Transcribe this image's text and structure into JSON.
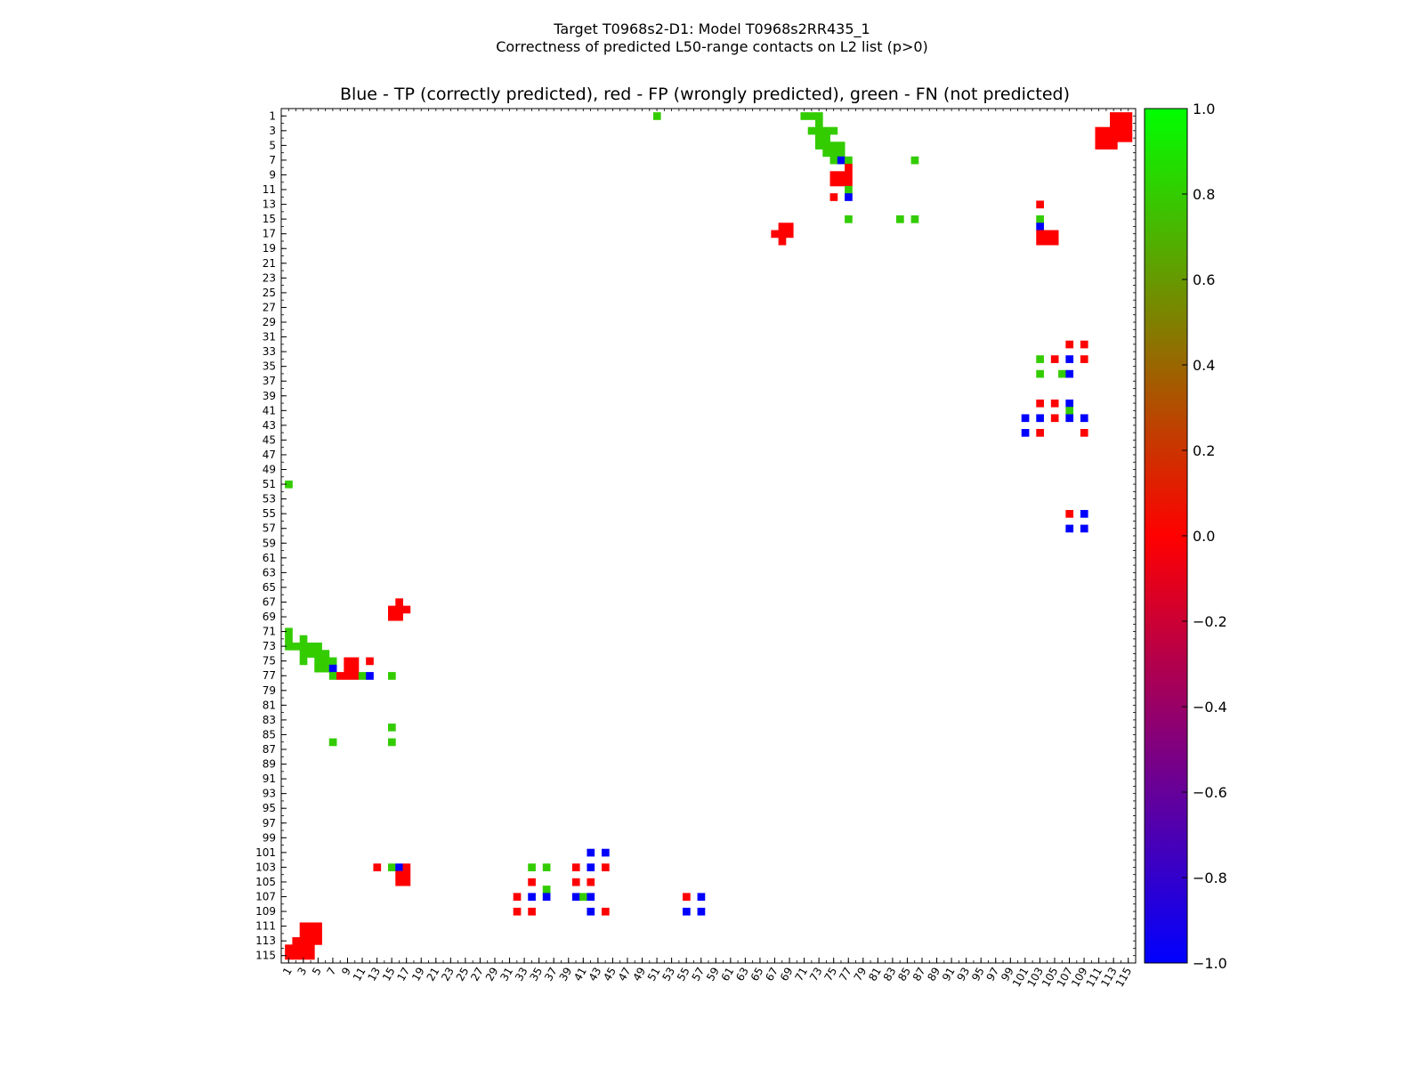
{
  "chart_data": {
    "type": "heatmap",
    "title": "Target T0968s2-D1: Model T0968s2RR435_1",
    "subtitle": "Correctness of predicted L50-range contacts on L2 list (p>0)",
    "panel_title": "Blue - TP (correctly predicted), red - FP (wrongly predicted), green - FN (not predicted)",
    "n_residues": 115,
    "xlim": [
      1,
      115
    ],
    "ylim": [
      1,
      115
    ],
    "x_ticks": [
      1,
      3,
      5,
      7,
      9,
      11,
      13,
      15,
      17,
      19,
      21,
      23,
      25,
      27,
      29,
      31,
      33,
      35,
      37,
      39,
      41,
      43,
      45,
      47,
      49,
      51,
      53,
      55,
      57,
      59,
      61,
      63,
      65,
      67,
      69,
      71,
      73,
      75,
      77,
      79,
      81,
      83,
      85,
      87,
      89,
      91,
      93,
      95,
      97,
      99,
      101,
      103,
      105,
      107,
      109,
      111,
      113,
      115
    ],
    "y_ticks": [
      1,
      3,
      5,
      7,
      9,
      11,
      13,
      15,
      17,
      19,
      21,
      23,
      25,
      27,
      29,
      31,
      33,
      35,
      37,
      39,
      41,
      43,
      45,
      47,
      49,
      51,
      53,
      55,
      57,
      59,
      61,
      63,
      65,
      67,
      69,
      71,
      73,
      75,
      77,
      79,
      81,
      83,
      85,
      87,
      89,
      91,
      93,
      95,
      97,
      99,
      101,
      103,
      105,
      107,
      109,
      111,
      113,
      115
    ],
    "legend": {
      "tp": "blue",
      "fp": "red",
      "fn": "green"
    },
    "colors": {
      "tp": "#0000ff",
      "fp": "#ff0000",
      "fn": "#33cc00",
      "fn_light": "#44dd00"
    },
    "colorbar": {
      "range": [
        -1.0,
        1.0
      ],
      "ticks": [
        "1.0",
        "0.8",
        "0.6",
        "0.4",
        "0.2",
        "0.0",
        "−0.2",
        "−0.4",
        "−0.6",
        "−0.8",
        "−1.0"
      ],
      "tick_values": [
        1.0,
        0.8,
        0.6,
        0.4,
        0.2,
        0.0,
        -0.2,
        -0.4,
        -0.6,
        -0.8,
        -1.0
      ],
      "stops": [
        {
          "value": -1.0,
          "color": "#0000ff"
        },
        {
          "value": -0.5,
          "color": "#7f0080"
        },
        {
          "value": 0.0,
          "color": "#ff0000"
        },
        {
          "value": 0.5,
          "color": "#808000"
        },
        {
          "value": 1.0,
          "color": "#00ff00"
        }
      ]
    },
    "cells": [
      {
        "x": 51,
        "y": 1,
        "c": "fn"
      },
      {
        "x": 71,
        "y": 1,
        "c": "fn"
      },
      {
        "x": 72,
        "y": 1,
        "c": "fn"
      },
      {
        "x": 73,
        "y": 1,
        "c": "fn"
      },
      {
        "x": 73,
        "y": 2,
        "c": "fn"
      },
      {
        "x": 72,
        "y": 3,
        "c": "fn"
      },
      {
        "x": 73,
        "y": 3,
        "c": "fn"
      },
      {
        "x": 74,
        "y": 3,
        "c": "fn"
      },
      {
        "x": 75,
        "y": 3,
        "c": "fn"
      },
      {
        "x": 73,
        "y": 4,
        "c": "fn"
      },
      {
        "x": 74,
        "y": 4,
        "c": "fn"
      },
      {
        "x": 73,
        "y": 5,
        "c": "fn"
      },
      {
        "x": 74,
        "y": 5,
        "c": "fn"
      },
      {
        "x": 75,
        "y": 5,
        "c": "fn"
      },
      {
        "x": 76,
        "y": 5,
        "c": "fn"
      },
      {
        "x": 74,
        "y": 6,
        "c": "fn"
      },
      {
        "x": 75,
        "y": 6,
        "c": "fn"
      },
      {
        "x": 76,
        "y": 6,
        "c": "fn"
      },
      {
        "x": 75,
        "y": 7,
        "c": "fn"
      },
      {
        "x": 76,
        "y": 7,
        "c": "tp"
      },
      {
        "x": 77,
        "y": 7,
        "c": "fn"
      },
      {
        "x": 86,
        "y": 7,
        "c": "fn"
      },
      {
        "x": 77,
        "y": 8,
        "c": "fp"
      },
      {
        "x": 75,
        "y": 9,
        "c": "fp"
      },
      {
        "x": 76,
        "y": 9,
        "c": "fp"
      },
      {
        "x": 77,
        "y": 9,
        "c": "fp"
      },
      {
        "x": 75,
        "y": 10,
        "c": "fp"
      },
      {
        "x": 76,
        "y": 10,
        "c": "fp"
      },
      {
        "x": 77,
        "y": 10,
        "c": "fp"
      },
      {
        "x": 77,
        "y": 11,
        "c": "fn"
      },
      {
        "x": 75,
        "y": 12,
        "c": "fp"
      },
      {
        "x": 77,
        "y": 12,
        "c": "tp"
      },
      {
        "x": 103,
        "y": 13,
        "c": "fp"
      },
      {
        "x": 77,
        "y": 15,
        "c": "fn"
      },
      {
        "x": 84,
        "y": 15,
        "c": "fn"
      },
      {
        "x": 86,
        "y": 15,
        "c": "fn"
      },
      {
        "x": 103,
        "y": 15,
        "c": "fn"
      },
      {
        "x": 68,
        "y": 16,
        "c": "fp"
      },
      {
        "x": 69,
        "y": 16,
        "c": "fp"
      },
      {
        "x": 103,
        "y": 16,
        "c": "tp"
      },
      {
        "x": 67,
        "y": 17,
        "c": "fp"
      },
      {
        "x": 68,
        "y": 17,
        "c": "fp"
      },
      {
        "x": 69,
        "y": 17,
        "c": "fp"
      },
      {
        "x": 103,
        "y": 17,
        "c": "fp"
      },
      {
        "x": 104,
        "y": 17,
        "c": "fp"
      },
      {
        "x": 105,
        "y": 17,
        "c": "fp"
      },
      {
        "x": 68,
        "y": 18,
        "c": "fp"
      },
      {
        "x": 103,
        "y": 18,
        "c": "fp"
      },
      {
        "x": 104,
        "y": 18,
        "c": "fp"
      },
      {
        "x": 105,
        "y": 18,
        "c": "fp"
      },
      {
        "x": 107,
        "y": 32,
        "c": "fp"
      },
      {
        "x": 109,
        "y": 32,
        "c": "fp"
      },
      {
        "x": 103,
        "y": 34,
        "c": "fn"
      },
      {
        "x": 105,
        "y": 34,
        "c": "fp"
      },
      {
        "x": 107,
        "y": 34,
        "c": "tp"
      },
      {
        "x": 109,
        "y": 34,
        "c": "fp"
      },
      {
        "x": 103,
        "y": 36,
        "c": "fn"
      },
      {
        "x": 106,
        "y": 36,
        "c": "fn"
      },
      {
        "x": 107,
        "y": 36,
        "c": "tp"
      },
      {
        "x": 103,
        "y": 40,
        "c": "fp"
      },
      {
        "x": 105,
        "y": 40,
        "c": "fp"
      },
      {
        "x": 107,
        "y": 40,
        "c": "tp"
      },
      {
        "x": 107,
        "y": 41,
        "c": "fn"
      },
      {
        "x": 101,
        "y": 42,
        "c": "tp"
      },
      {
        "x": 103,
        "y": 42,
        "c": "tp"
      },
      {
        "x": 105,
        "y": 42,
        "c": "fp"
      },
      {
        "x": 107,
        "y": 42,
        "c": "tp"
      },
      {
        "x": 109,
        "y": 42,
        "c": "tp"
      },
      {
        "x": 101,
        "y": 44,
        "c": "tp"
      },
      {
        "x": 103,
        "y": 44,
        "c": "fp"
      },
      {
        "x": 109,
        "y": 44,
        "c": "fp"
      },
      {
        "x": 107,
        "y": 55,
        "c": "fp"
      },
      {
        "x": 109,
        "y": 55,
        "c": "tp"
      },
      {
        "x": 107,
        "y": 57,
        "c": "tp"
      },
      {
        "x": 109,
        "y": 57,
        "c": "tp"
      },
      {
        "x": 113,
        "y": 1,
        "c": "fp"
      },
      {
        "x": 114,
        "y": 1,
        "c": "fp"
      },
      {
        "x": 115,
        "y": 1,
        "c": "fp"
      },
      {
        "x": 113,
        "y": 2,
        "c": "fp"
      },
      {
        "x": 114,
        "y": 2,
        "c": "fp"
      },
      {
        "x": 115,
        "y": 2,
        "c": "fp"
      },
      {
        "x": 111,
        "y": 3,
        "c": "fp"
      },
      {
        "x": 112,
        "y": 3,
        "c": "fp"
      },
      {
        "x": 113,
        "y": 3,
        "c": "fp"
      },
      {
        "x": 114,
        "y": 3,
        "c": "fp"
      },
      {
        "x": 115,
        "y": 3,
        "c": "fp"
      },
      {
        "x": 111,
        "y": 4,
        "c": "fp"
      },
      {
        "x": 112,
        "y": 4,
        "c": "fp"
      },
      {
        "x": 113,
        "y": 4,
        "c": "fp"
      },
      {
        "x": 114,
        "y": 4,
        "c": "fp"
      },
      {
        "x": 115,
        "y": 4,
        "c": "fp"
      },
      {
        "x": 111,
        "y": 5,
        "c": "fp"
      },
      {
        "x": 112,
        "y": 5,
        "c": "fp"
      },
      {
        "x": 113,
        "y": 5,
        "c": "fp"
      },
      {
        "x": 1,
        "y": 51,
        "c": "fn"
      },
      {
        "x": 16,
        "y": 67,
        "c": "fp"
      },
      {
        "x": 15,
        "y": 68,
        "c": "fp"
      },
      {
        "x": 16,
        "y": 68,
        "c": "fp"
      },
      {
        "x": 17,
        "y": 68,
        "c": "fp"
      },
      {
        "x": 15,
        "y": 69,
        "c": "fp"
      },
      {
        "x": 16,
        "y": 69,
        "c": "fp"
      },
      {
        "x": 1,
        "y": 71,
        "c": "fn"
      },
      {
        "x": 1,
        "y": 72,
        "c": "fn"
      },
      {
        "x": 3,
        "y": 72,
        "c": "fn"
      },
      {
        "x": 1,
        "y": 73,
        "c": "fn"
      },
      {
        "x": 2,
        "y": 73,
        "c": "fn"
      },
      {
        "x": 3,
        "y": 73,
        "c": "fn"
      },
      {
        "x": 4,
        "y": 73,
        "c": "fn"
      },
      {
        "x": 5,
        "y": 73,
        "c": "fn"
      },
      {
        "x": 3,
        "y": 74,
        "c": "fn"
      },
      {
        "x": 4,
        "y": 74,
        "c": "fn"
      },
      {
        "x": 5,
        "y": 74,
        "c": "fn"
      },
      {
        "x": 6,
        "y": 74,
        "c": "fn"
      },
      {
        "x": 3,
        "y": 75,
        "c": "fn"
      },
      {
        "x": 5,
        "y": 75,
        "c": "fn"
      },
      {
        "x": 6,
        "y": 75,
        "c": "fn"
      },
      {
        "x": 7,
        "y": 75,
        "c": "fn"
      },
      {
        "x": 9,
        "y": 75,
        "c": "fp"
      },
      {
        "x": 10,
        "y": 75,
        "c": "fp"
      },
      {
        "x": 12,
        "y": 75,
        "c": "fp"
      },
      {
        "x": 5,
        "y": 76,
        "c": "fn"
      },
      {
        "x": 6,
        "y": 76,
        "c": "fn"
      },
      {
        "x": 7,
        "y": 76,
        "c": "tp"
      },
      {
        "x": 9,
        "y": 76,
        "c": "fp"
      },
      {
        "x": 10,
        "y": 76,
        "c": "fp"
      },
      {
        "x": 7,
        "y": 77,
        "c": "fn"
      },
      {
        "x": 8,
        "y": 77,
        "c": "fp"
      },
      {
        "x": 9,
        "y": 77,
        "c": "fp"
      },
      {
        "x": 10,
        "y": 77,
        "c": "fp"
      },
      {
        "x": 11,
        "y": 77,
        "c": "fn"
      },
      {
        "x": 12,
        "y": 77,
        "c": "tp"
      },
      {
        "x": 15,
        "y": 77,
        "c": "fn"
      },
      {
        "x": 15,
        "y": 84,
        "c": "fn"
      },
      {
        "x": 7,
        "y": 86,
        "c": "fn"
      },
      {
        "x": 15,
        "y": 86,
        "c": "fn"
      },
      {
        "x": 42,
        "y": 101,
        "c": "tp"
      },
      {
        "x": 44,
        "y": 101,
        "c": "tp"
      },
      {
        "x": 13,
        "y": 103,
        "c": "fp"
      },
      {
        "x": 15,
        "y": 103,
        "c": "fn"
      },
      {
        "x": 16,
        "y": 103,
        "c": "tp"
      },
      {
        "x": 17,
        "y": 103,
        "c": "fp"
      },
      {
        "x": 34,
        "y": 103,
        "c": "fn"
      },
      {
        "x": 36,
        "y": 103,
        "c": "fn"
      },
      {
        "x": 40,
        "y": 103,
        "c": "fp"
      },
      {
        "x": 42,
        "y": 103,
        "c": "tp"
      },
      {
        "x": 44,
        "y": 103,
        "c": "fp"
      },
      {
        "x": 16,
        "y": 104,
        "c": "fp"
      },
      {
        "x": 17,
        "y": 104,
        "c": "fp"
      },
      {
        "x": 16,
        "y": 105,
        "c": "fp"
      },
      {
        "x": 17,
        "y": 105,
        "c": "fp"
      },
      {
        "x": 34,
        "y": 105,
        "c": "fp"
      },
      {
        "x": 40,
        "y": 105,
        "c": "fp"
      },
      {
        "x": 42,
        "y": 105,
        "c": "fp"
      },
      {
        "x": 36,
        "y": 106,
        "c": "fn"
      },
      {
        "x": 32,
        "y": 107,
        "c": "fp"
      },
      {
        "x": 34,
        "y": 107,
        "c": "tp"
      },
      {
        "x": 36,
        "y": 107,
        "c": "tp"
      },
      {
        "x": 40,
        "y": 107,
        "c": "tp"
      },
      {
        "x": 41,
        "y": 107,
        "c": "fn"
      },
      {
        "x": 42,
        "y": 107,
        "c": "tp"
      },
      {
        "x": 55,
        "y": 107,
        "c": "fp"
      },
      {
        "x": 57,
        "y": 107,
        "c": "tp"
      },
      {
        "x": 32,
        "y": 109,
        "c": "fp"
      },
      {
        "x": 34,
        "y": 109,
        "c": "fp"
      },
      {
        "x": 42,
        "y": 109,
        "c": "tp"
      },
      {
        "x": 44,
        "y": 109,
        "c": "fp"
      },
      {
        "x": 55,
        "y": 109,
        "c": "tp"
      },
      {
        "x": 57,
        "y": 109,
        "c": "tp"
      },
      {
        "x": 3,
        "y": 111,
        "c": "fp"
      },
      {
        "x": 4,
        "y": 111,
        "c": "fp"
      },
      {
        "x": 5,
        "y": 111,
        "c": "fp"
      },
      {
        "x": 3,
        "y": 112,
        "c": "fp"
      },
      {
        "x": 4,
        "y": 112,
        "c": "fp"
      },
      {
        "x": 5,
        "y": 112,
        "c": "fp"
      },
      {
        "x": 2,
        "y": 113,
        "c": "fp"
      },
      {
        "x": 3,
        "y": 113,
        "c": "fp"
      },
      {
        "x": 4,
        "y": 113,
        "c": "fp"
      },
      {
        "x": 5,
        "y": 113,
        "c": "fp"
      },
      {
        "x": 1,
        "y": 114,
        "c": "fp"
      },
      {
        "x": 2,
        "y": 114,
        "c": "fp"
      },
      {
        "x": 3,
        "y": 114,
        "c": "fp"
      },
      {
        "x": 4,
        "y": 114,
        "c": "fp"
      },
      {
        "x": 1,
        "y": 115,
        "c": "fp"
      },
      {
        "x": 2,
        "y": 115,
        "c": "fp"
      },
      {
        "x": 3,
        "y": 115,
        "c": "fp"
      },
      {
        "x": 4,
        "y": 115,
        "c": "fp"
      }
    ]
  }
}
